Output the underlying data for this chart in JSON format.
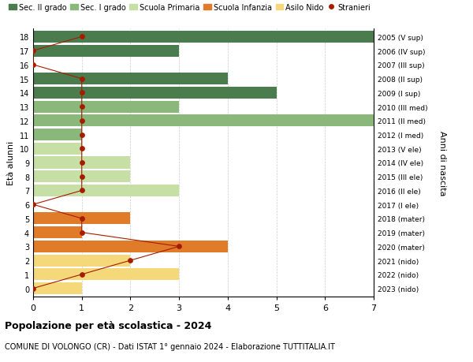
{
  "ages": [
    18,
    17,
    16,
    15,
    14,
    13,
    12,
    11,
    10,
    9,
    8,
    7,
    6,
    5,
    4,
    3,
    2,
    1,
    0
  ],
  "right_labels": [
    "2005 (V sup)",
    "2006 (IV sup)",
    "2007 (III sup)",
    "2008 (II sup)",
    "2009 (I sup)",
    "2010 (III med)",
    "2011 (II med)",
    "2012 (I med)",
    "2013 (V ele)",
    "2014 (IV ele)",
    "2015 (III ele)",
    "2016 (II ele)",
    "2017 (I ele)",
    "2018 (mater)",
    "2019 (mater)",
    "2020 (mater)",
    "2021 (nido)",
    "2022 (nido)",
    "2023 (nido)"
  ],
  "bar_values": [
    7,
    3,
    0,
    4,
    5,
    3,
    7,
    1,
    1,
    2,
    2,
    3,
    0,
    2,
    1,
    4,
    2,
    3,
    1
  ],
  "stranieri_values": [
    1,
    0,
    0,
    1,
    1,
    1,
    1,
    1,
    1,
    1,
    1,
    1,
    0,
    1,
    1,
    3,
    2,
    1,
    0
  ],
  "bar_colors": [
    "#4a7c4e",
    "#4a7c4e",
    "#4a7c4e",
    "#4a7c4e",
    "#4a7c4e",
    "#8ab87a",
    "#8ab87a",
    "#8ab87a",
    "#c5dfa5",
    "#c5dfa5",
    "#c5dfa5",
    "#c5dfa5",
    "#c5dfa5",
    "#e07b2a",
    "#e07b2a",
    "#e07b2a",
    "#f5d87a",
    "#f5d87a",
    "#f5d87a"
  ],
  "sec2_color": "#4a7c4e",
  "sec1_color": "#8ab87a",
  "primaria_color": "#c5dfa5",
  "infanzia_color": "#e07b2a",
  "nido_color": "#f5d87a",
  "stranieri_color": "#a61c00",
  "background_color": "#ffffff",
  "grid_color": "#cccccc",
  "ylabel": "Età alunni",
  "right_ylabel": "Anni di nascita",
  "title": "Popolazione per età scolastica - 2024",
  "subtitle": "COMUNE DI VOLONGO (CR) - Dati ISTAT 1° gennaio 2024 - Elaborazione TUTTITALIA.IT",
  "xlim": [
    0,
    7
  ],
  "legend_labels": [
    "Sec. II grado",
    "Sec. I grado",
    "Scuola Primaria",
    "Scuola Infanzia",
    "Asilo Nido",
    "Stranieri"
  ]
}
